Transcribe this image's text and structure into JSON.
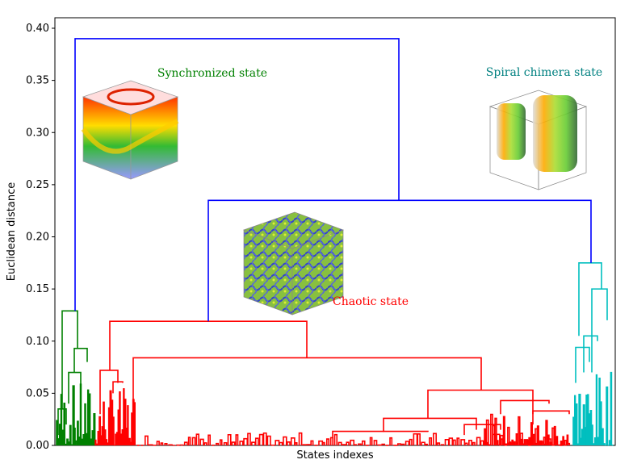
{
  "chart_data": {
    "type": "dendrogram",
    "xlabel": "States indexes",
    "ylabel": "Euclidean distance",
    "ylim": [
      0,
      0.4
    ],
    "yticks": [
      "0.00",
      "0.05",
      "0.10",
      "0.15",
      "0.20",
      "0.25",
      "0.30",
      "0.35",
      "0.40"
    ],
    "grid": false,
    "clusters": [
      {
        "label": "Synchronized state",
        "color": "#008000",
        "merge_height": 0.129
      },
      {
        "label": "Chaotic state",
        "color": "#ff0000",
        "merge_height": 0.119
      },
      {
        "label": "Spiral chimera state",
        "color": "#00bfbf",
        "merge_height": 0.175
      }
    ],
    "top_merges": [
      {
        "joins": "Chaotic state + Spiral chimera state",
        "height": 0.235,
        "color": "#0000ff"
      },
      {
        "joins": "Synchronized state + rest",
        "height": 0.39,
        "color": "#0000ff"
      }
    ]
  }
}
